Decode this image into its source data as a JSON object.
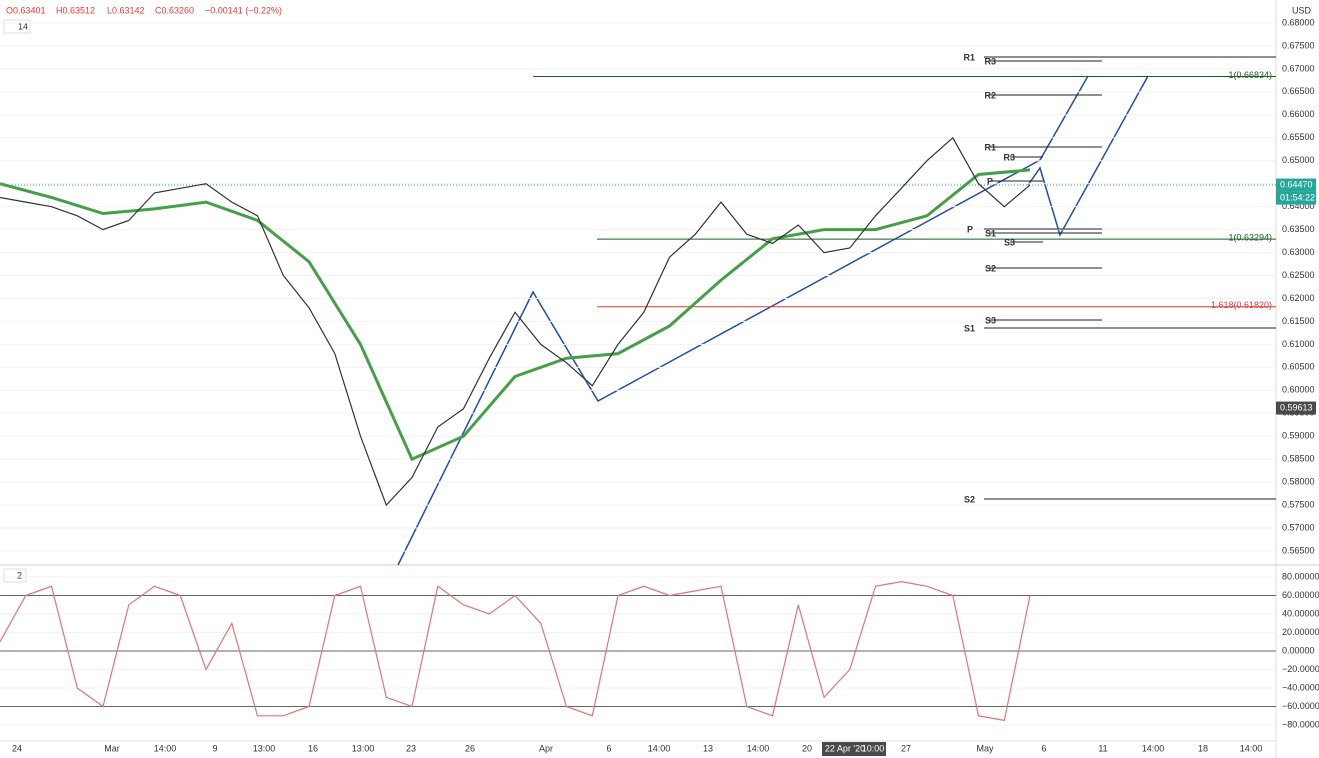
{
  "header": {
    "open": "O0.63401",
    "high": "H0.63512",
    "low": "L0.63142",
    "close": "C0.63260",
    "change": "−0.00141 (−0.22%)",
    "main_pane_label": "14",
    "osc_pane_label": "2",
    "currency": "USD"
  },
  "price_axis": [
    {
      "value": 0.68,
      "label": "0.68000"
    },
    {
      "value": 0.675,
      "label": "0.67500"
    },
    {
      "value": 0.67,
      "label": "0.67000"
    },
    {
      "value": 0.665,
      "label": "0.66500"
    },
    {
      "value": 0.66,
      "label": "0.66000"
    },
    {
      "value": 0.655,
      "label": "0.65500"
    },
    {
      "value": 0.65,
      "label": "0.65000"
    },
    {
      "value": 0.645,
      "label": "0.64500"
    },
    {
      "value": 0.64,
      "label": "0.64000"
    },
    {
      "value": 0.635,
      "label": "0.63500"
    },
    {
      "value": 0.63,
      "label": "0.63000"
    },
    {
      "value": 0.625,
      "label": "0.62500"
    },
    {
      "value": 0.62,
      "label": "0.62000"
    },
    {
      "value": 0.615,
      "label": "0.61500"
    },
    {
      "value": 0.61,
      "label": "0.61000"
    },
    {
      "value": 0.605,
      "label": "0.60500"
    },
    {
      "value": 0.6,
      "label": "0.60000"
    },
    {
      "value": 0.595,
      "label": "0.59500"
    },
    {
      "value": 0.59,
      "label": "0.59000"
    },
    {
      "value": 0.585,
      "label": "0.58500"
    },
    {
      "value": 0.58,
      "label": "0.58000"
    },
    {
      "value": 0.575,
      "label": "0.57500"
    },
    {
      "value": 0.57,
      "label": "0.57000"
    },
    {
      "value": 0.565,
      "label": "0.56500"
    }
  ],
  "price_tags": [
    {
      "value": 0.6447,
      "label": "0.64470",
      "color": "#26a69a"
    },
    {
      "value": 0.6447,
      "label": "01:54:22",
      "color": "#26a69a"
    },
    {
      "value": 0.59613,
      "label": "0.59613",
      "color": "#4a4a4a"
    }
  ],
  "osc_axis": [
    {
      "value": 80,
      "label": "80.00000"
    },
    {
      "value": 60,
      "label": "60.00000"
    },
    {
      "value": 40,
      "label": "40.00000"
    },
    {
      "value": 20,
      "label": "20.00000"
    },
    {
      "value": 0,
      "label": "0.00000"
    },
    {
      "value": -20,
      "label": "−20.00000"
    },
    {
      "value": -40,
      "label": "−40.00000"
    },
    {
      "value": -60,
      "label": "−60.00000"
    },
    {
      "value": -80,
      "label": "−80.00000"
    }
  ],
  "time_axis": [
    "24",
    "Mar",
    "14:00",
    "9",
    "13:00",
    "16",
    "13:00",
    "23",
    "26",
    "Apr",
    "6",
    "14:00",
    "13",
    "14:00",
    "20",
    "22 Apr '20",
    "10:00",
    "27",
    "May",
    "6",
    "11",
    "14:00",
    "18",
    "14:00"
  ],
  "fib_levels": [
    {
      "value": 0.66834,
      "label": "1(0.66834)",
      "color": "#1b5e20"
    },
    {
      "value": 0.63294,
      "label": "1(0.63294)",
      "color": "#1b5e20"
    },
    {
      "value": 0.6182,
      "label": "1.618(0.61820)",
      "color": "#e53935"
    }
  ],
  "pivots": [
    "R1",
    "R3",
    "R2",
    "R1",
    "R3",
    "P",
    "P",
    "S1",
    "S3",
    "S2",
    "S3",
    "S1",
    "S2"
  ],
  "price_series": {
    "name": "close",
    "color": "#333333",
    "values": [
      0.642,
      0.641,
      0.64,
      0.638,
      0.635,
      0.637,
      0.643,
      0.644,
      0.645,
      0.641,
      0.638,
      0.625,
      0.618,
      0.608,
      0.59,
      0.575,
      0.581,
      0.592,
      0.596,
      0.607,
      0.617,
      0.61,
      0.606,
      0.601,
      0.61,
      0.617,
      0.629,
      0.634,
      0.641,
      0.634,
      0.632,
      0.636,
      0.63,
      0.631,
      0.638,
      0.644,
      0.65,
      0.655,
      0.645,
      0.64,
      0.6447
    ]
  },
  "basis_series": {
    "name": "basis",
    "color": "#43a047",
    "values": [
      0.645,
      0.642,
      0.6385,
      0.6395,
      0.641,
      0.637,
      0.628,
      0.61,
      0.585,
      0.59,
      0.603,
      0.607,
      0.608,
      0.614,
      0.624,
      0.633,
      0.635,
      0.635,
      0.638,
      0.647,
      0.648
    ]
  },
  "osc_series": {
    "name": "k",
    "color": "#e57373",
    "values": [
      10,
      60,
      70,
      -40,
      -60,
      50,
      70,
      60,
      -20,
      30,
      -70,
      -70,
      -60,
      60,
      70,
      -50,
      -60,
      70,
      50,
      40,
      60,
      30,
      -60,
      -70,
      60,
      70,
      60,
      65,
      70,
      -60,
      -70,
      50,
      -50,
      -20,
      70,
      75,
      70,
      60,
      -70,
      -75,
      60
    ]
  }
}
